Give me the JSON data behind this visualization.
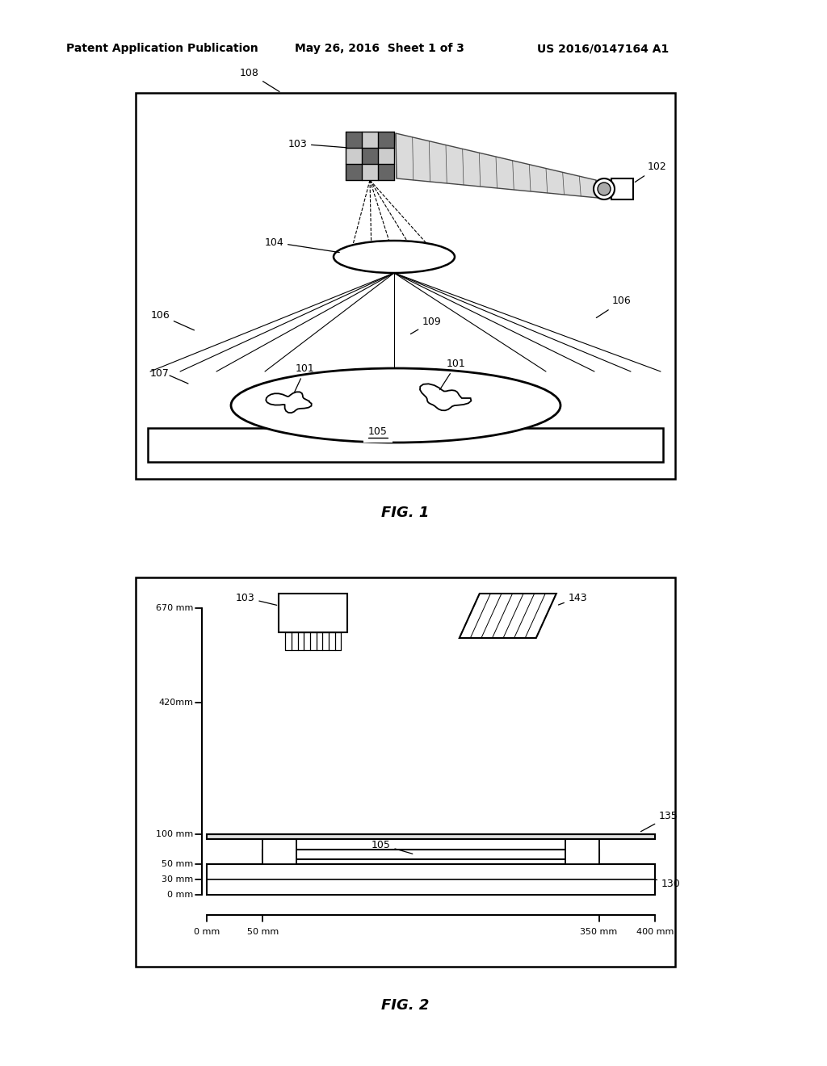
{
  "bg_color": "#ffffff",
  "header_left": "Patent Application Publication",
  "header_mid": "May 26, 2016  Sheet 1 of 3",
  "header_right": "US 2016/0147164 A1",
  "fig1_caption": "FIG. 1",
  "fig2_caption": "FIG. 2"
}
